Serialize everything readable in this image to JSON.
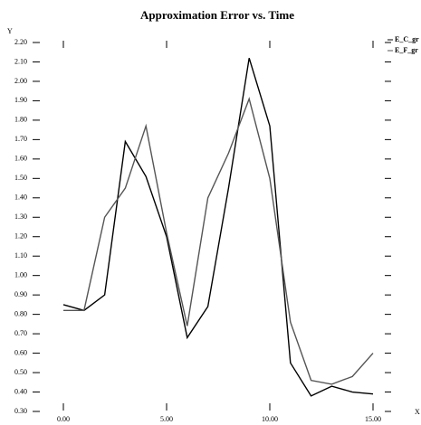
{
  "chart_data": {
    "type": "line",
    "title": "Approximation Error vs. Time",
    "x_label": "X",
    "y_label": "Y",
    "x": [
      0,
      1,
      2,
      3,
      4,
      5,
      6,
      7,
      8,
      9,
      10,
      11,
      12,
      13,
      14,
      15
    ],
    "series": [
      {
        "name": "E_C_gr",
        "color": "#000000",
        "values": [
          0.85,
          0.82,
          0.9,
          1.69,
          1.51,
          1.2,
          0.68,
          0.84,
          1.45,
          2.12,
          1.77,
          0.55,
          0.38,
          0.43,
          0.4,
          0.39
        ]
      },
      {
        "name": "E_F_gr",
        "color": "#555555",
        "values": [
          0.82,
          0.82,
          1.3,
          1.45,
          1.77,
          1.22,
          0.74,
          1.4,
          1.63,
          1.91,
          1.5,
          0.76,
          0.46,
          0.44,
          0.48,
          0.6
        ]
      }
    ],
    "xlim": [
      0,
      15
    ],
    "xticks": [
      {
        "value": 0,
        "label": "0.00"
      },
      {
        "value": 5,
        "label": "5.00"
      },
      {
        "value": 10,
        "label": "10.00"
      },
      {
        "value": 15,
        "label": "15.00"
      }
    ],
    "ylim": [
      0.3,
      2.2
    ],
    "yticks": [
      {
        "value": 0.3,
        "label": "0.30"
      },
      {
        "value": 0.4,
        "label": "0.40"
      },
      {
        "value": 0.5,
        "label": "0.50"
      },
      {
        "value": 0.6,
        "label": "0.60"
      },
      {
        "value": 0.7,
        "label": "0.70"
      },
      {
        "value": 0.8,
        "label": "0.80"
      },
      {
        "value": 0.9,
        "label": "0.90"
      },
      {
        "value": 1.0,
        "label": "1.00"
      },
      {
        "value": 1.1,
        "label": "1.10"
      },
      {
        "value": 1.2,
        "label": "1.20"
      },
      {
        "value": 1.3,
        "label": "1.30"
      },
      {
        "value": 1.4,
        "label": "1.40"
      },
      {
        "value": 1.5,
        "label": "1.50"
      },
      {
        "value": 1.6,
        "label": "1.60"
      },
      {
        "value": 1.7,
        "label": "1.70"
      },
      {
        "value": 1.8,
        "label": "1.80"
      },
      {
        "value": 1.9,
        "label": "1.90"
      },
      {
        "value": 2.0,
        "label": "2.00"
      },
      {
        "value": 2.1,
        "label": "2.10"
      },
      {
        "value": 2.2,
        "label": "2.20"
      }
    ],
    "grid": false,
    "legend": "top-right"
  }
}
